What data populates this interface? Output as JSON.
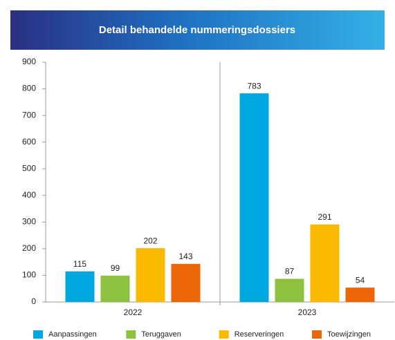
{
  "chart_data": {
    "type": "bar",
    "title": "Detail behandelde nummeringsdossiers",
    "categories": [
      "2022",
      "2023"
    ],
    "series": [
      {
        "name": "Aanpassingen",
        "color": "#00a8e1",
        "values": [
          115,
          783
        ]
      },
      {
        "name": "Teruggaven",
        "color": "#8cc23f",
        "values": [
          99,
          87
        ]
      },
      {
        "name": "Reserveringen",
        "color": "#fbb900",
        "values": [
          202,
          291
        ]
      },
      {
        "name": "Toewijzingen",
        "color": "#ec6608",
        "values": [
          143,
          54
        ]
      }
    ],
    "ylim": [
      0,
      900
    ],
    "yticks": [
      0,
      100,
      200,
      300,
      400,
      500,
      600,
      700,
      800,
      900
    ],
    "grid": false,
    "legend": "bottom"
  }
}
